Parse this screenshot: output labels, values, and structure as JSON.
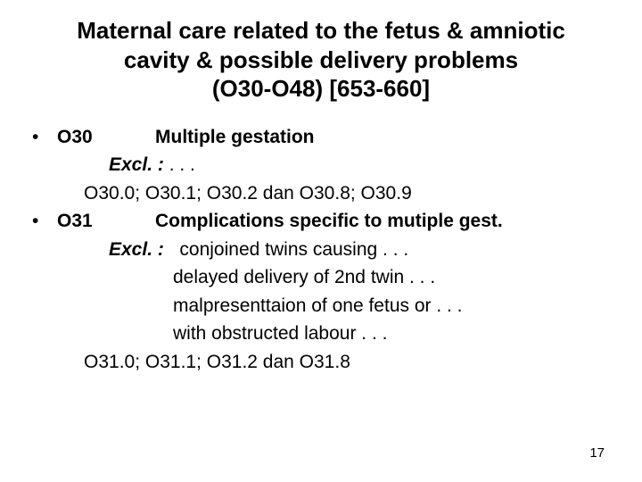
{
  "title": {
    "line1": "Maternal care related to the fetus & amniotic",
    "line2": "cavity & possible delivery problems",
    "line3": "(O30-O48)  [653-660]",
    "fontsize": 26
  },
  "body": {
    "fontsize": 21,
    "bullet_char": "•",
    "items": [
      {
        "code": "O30",
        "desc": "Multiple gestation",
        "excl_label": "Excl. :",
        "excl_inline": ". . .",
        "sub": "O30.0;  O30.1;  O30.2  dan  O30.8;  O30.9"
      },
      {
        "code": "O31",
        "desc": "Complications specific to mutiple gest.",
        "excl_label": "Excl. :",
        "excl_inline": "conjoined twins causing . . .",
        "excl_items": [
          "delayed delivery of 2nd twin . . .",
          "malpresenttaion of one fetus or . . .",
          "with obstructed labour . . ."
        ],
        "sub": "O31.0;  O31.1;  O31.2  dan  O31.8"
      }
    ]
  },
  "page_number": "17",
  "colors": {
    "text": "#000000",
    "background": "#ffffff"
  }
}
